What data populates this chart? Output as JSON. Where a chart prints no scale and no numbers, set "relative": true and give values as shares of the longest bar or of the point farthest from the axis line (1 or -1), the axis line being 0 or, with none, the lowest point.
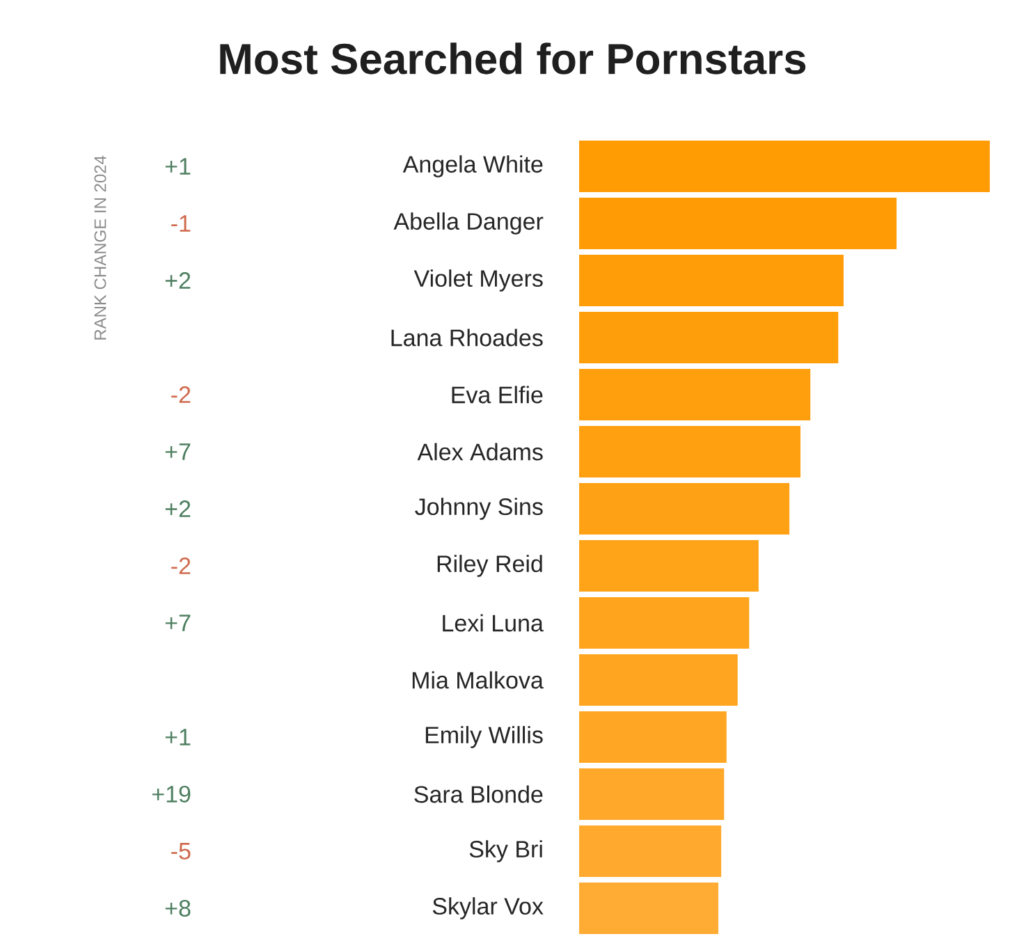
{
  "chart_data": {
    "type": "bar",
    "orientation": "horizontal",
    "relative": true,
    "title": "Most Searched for Pornstars",
    "categories": [
      "Angela White",
      "Abella Danger",
      "Violet Myers",
      "Lana Rhoades",
      "Eva Elfie",
      "Alex Adams",
      "Johnny Sins",
      "Riley Reid",
      "Lexi Luna",
      "Mia Malkova",
      "Emily Willis",
      "Sara Blonde",
      "Sky Bri",
      "Skylar Vox"
    ],
    "values": [
      1,
      0.773,
      0.644,
      0.631,
      0.563,
      0.539,
      0.512,
      0.437,
      0.414,
      0.386,
      0.359,
      0.353,
      0.346,
      0.339
    ],
    "colors": [
      "#ff9b03",
      "#ff9c05",
      "#ff9d08",
      "#ff9e0b",
      "#ff9f0e",
      "#ffa011",
      "#ffa114",
      "#ffa318",
      "#ffa41c",
      "#ffa520",
      "#ffa725",
      "#ffa82a",
      "#ffaa2f",
      "#ffac35"
    ],
    "annotations": [
      "+1",
      "-1",
      "+2",
      null,
      "-2",
      "+7",
      "+2",
      "-2",
      "+7",
      null,
      "+1",
      "+19",
      "-5",
      "+8",
      "RANK CHANGE IN 2024"
    ]
  }
}
